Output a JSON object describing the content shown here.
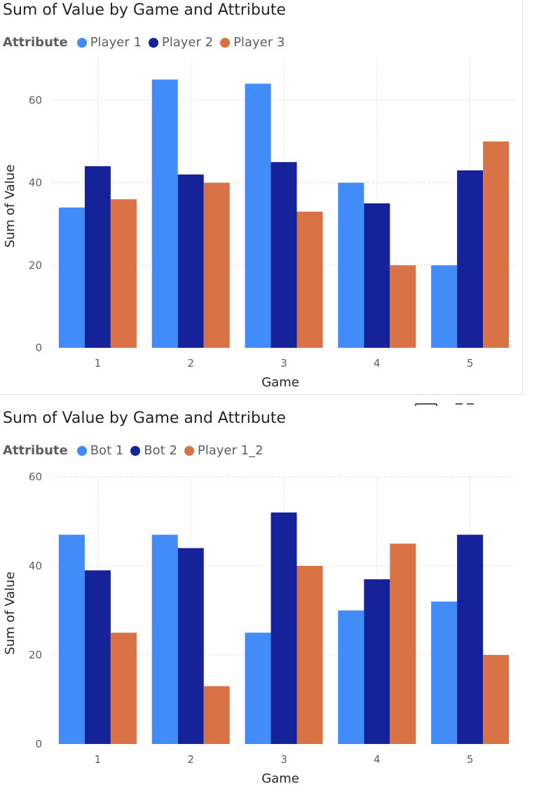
{
  "chart_data": [
    {
      "type": "bar",
      "title": "Sum of Value by Game and Attribute",
      "legend_title": "Attribute",
      "xlabel": "Game",
      "ylabel": "Sum of Value",
      "categories": [
        "1",
        "2",
        "3",
        "4",
        "5"
      ],
      "yticks": [
        0,
        20,
        40,
        60
      ],
      "ylim": [
        0,
        70
      ],
      "grid": true,
      "legend_position": "top-left",
      "series": [
        {
          "name": "Player 1",
          "color": "#418cf9",
          "values": [
            34,
            65,
            64,
            40,
            20
          ]
        },
        {
          "name": "Player 2",
          "color": "#16229a",
          "values": [
            44,
            42,
            45,
            35,
            43
          ]
        },
        {
          "name": "Player 3",
          "color": "#d97346",
          "values": [
            36,
            40,
            33,
            20,
            50
          ]
        }
      ]
    },
    {
      "type": "bar",
      "title": "Sum of Value by Game and Attribute",
      "legend_title": "Attribute",
      "xlabel": "Game",
      "ylabel": "Sum of Value",
      "categories": [
        "1",
        "2",
        "3",
        "4",
        "5"
      ],
      "yticks": [
        0,
        20,
        40,
        60
      ],
      "ylim": [
        0,
        60
      ],
      "grid": true,
      "legend_position": "top-left",
      "series": [
        {
          "name": "Bot 1",
          "color": "#418cf9",
          "values": [
            47,
            47,
            25,
            30,
            32
          ]
        },
        {
          "name": "Bot 2",
          "color": "#16229a",
          "values": [
            39,
            44,
            52,
            37,
            47
          ]
        },
        {
          "name": "Player 1_2",
          "color": "#d97346",
          "values": [
            25,
            13,
            40,
            45,
            20
          ]
        }
      ]
    }
  ]
}
